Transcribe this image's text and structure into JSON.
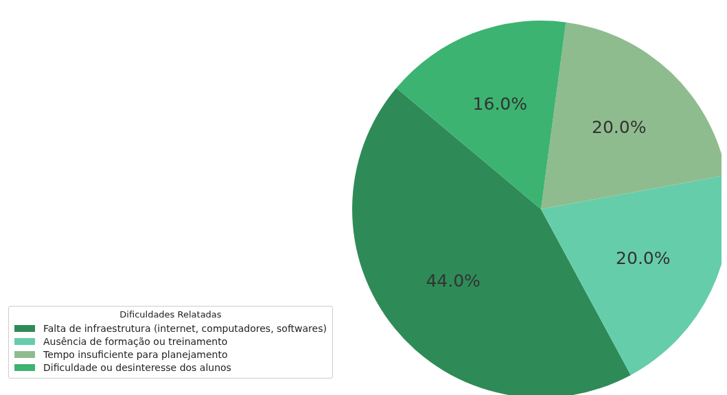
{
  "chart_data": {
    "type": "pie",
    "legend_title": "Dificuldades Relatadas",
    "categories": [
      "Falta de infraestrutura (internet, computadores, softwares)",
      "Ausência de formação ou treinamento",
      "Tempo insuficiente para planejamento",
      "Dificuldade ou desinteresse dos alunos"
    ],
    "values": [
      44,
      20,
      20,
      16
    ],
    "colors": [
      "#2e8b57",
      "#66cdaa",
      "#8fbc8f",
      "#3cb371"
    ],
    "value_labels": [
      "44.0%",
      "20.0%",
      "20.0%",
      "16.0%"
    ],
    "legend": "bottom left"
  }
}
